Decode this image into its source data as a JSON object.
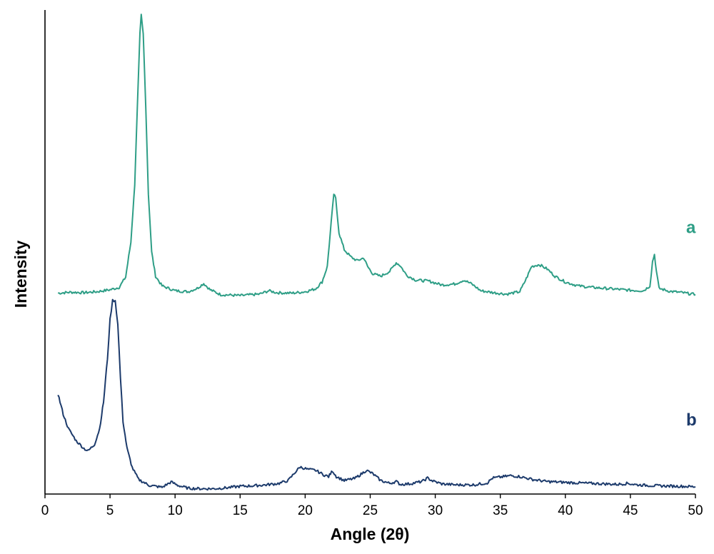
{
  "chart_data": {
    "type": "line",
    "xlabel": "Angle (2θ)",
    "ylabel": "Intensity",
    "xlim": [
      0,
      50
    ],
    "ylim": [
      0,
      100
    ],
    "x_ticks": [
      "0",
      "5",
      "10",
      "15",
      "20",
      "25",
      "30",
      "35",
      "40",
      "45",
      "50"
    ],
    "y_ticks_shown": false,
    "grid": false,
    "legend": "none; series labelled at right end of curves",
    "series": [
      {
        "name": "a",
        "color": "#2e9e86",
        "points": [
          [
            1.0,
            41.5
          ],
          [
            2.0,
            41.7
          ],
          [
            3.0,
            41.6
          ],
          [
            4.0,
            41.8
          ],
          [
            5.0,
            42.2
          ],
          [
            5.7,
            42.7
          ],
          [
            6.2,
            44.8
          ],
          [
            6.6,
            52.0
          ],
          [
            6.9,
            64.0
          ],
          [
            7.1,
            80.0
          ],
          [
            7.3,
            95.0
          ],
          [
            7.4,
            98.9
          ],
          [
            7.55,
            95.0
          ],
          [
            7.75,
            80.0
          ],
          [
            7.95,
            62.0
          ],
          [
            8.2,
            50.0
          ],
          [
            8.5,
            45.0
          ],
          [
            9.0,
            43.0
          ],
          [
            10.0,
            42.0
          ],
          [
            11.0,
            41.8
          ],
          [
            11.7,
            42.5
          ],
          [
            12.2,
            43.5
          ],
          [
            12.7,
            42.2
          ],
          [
            13.5,
            41.2
          ],
          [
            15.0,
            41.0
          ],
          [
            16.5,
            41.3
          ],
          [
            17.2,
            42.0
          ],
          [
            17.8,
            41.6
          ],
          [
            19.0,
            41.5
          ],
          [
            20.0,
            41.8
          ],
          [
            20.8,
            42.4
          ],
          [
            21.3,
            43.8
          ],
          [
            21.7,
            47.0
          ],
          [
            22.0,
            56.0
          ],
          [
            22.2,
            62.0
          ],
          [
            22.35,
            61.0
          ],
          [
            22.6,
            54.0
          ],
          [
            23.0,
            50.5
          ],
          [
            23.5,
            49.0
          ],
          [
            24.0,
            48.2
          ],
          [
            24.5,
            48.8
          ],
          [
            24.8,
            47.0
          ],
          [
            25.2,
            45.5
          ],
          [
            25.8,
            45.0
          ],
          [
            26.5,
            46.0
          ],
          [
            27.0,
            47.8
          ],
          [
            27.3,
            47.2
          ],
          [
            27.8,
            45.2
          ],
          [
            28.5,
            44.2
          ],
          [
            29.5,
            44.0
          ],
          [
            30.5,
            43.2
          ],
          [
            31.5,
            43.4
          ],
          [
            32.2,
            44.2
          ],
          [
            32.8,
            43.4
          ],
          [
            33.5,
            42.0
          ],
          [
            34.5,
            41.6
          ],
          [
            35.5,
            41.3
          ],
          [
            36.5,
            41.8
          ],
          [
            37.0,
            44.5
          ],
          [
            37.4,
            47.0
          ],
          [
            38.0,
            47.4
          ],
          [
            38.6,
            46.5
          ],
          [
            39.2,
            45.0
          ],
          [
            40.0,
            43.8
          ],
          [
            41.0,
            43.0
          ],
          [
            42.0,
            42.7
          ],
          [
            43.0,
            42.5
          ],
          [
            44.0,
            42.3
          ],
          [
            45.0,
            42.1
          ],
          [
            46.0,
            42.0
          ],
          [
            46.5,
            43.0
          ],
          [
            46.7,
            48.0
          ],
          [
            46.85,
            49.5
          ],
          [
            47.0,
            46.0
          ],
          [
            47.2,
            42.5
          ],
          [
            48.0,
            41.9
          ],
          [
            49.0,
            41.6
          ],
          [
            50.0,
            41.2
          ]
        ]
      },
      {
        "name": "b",
        "color": "#1c3a6b",
        "points": [
          [
            1.0,
            20.7
          ],
          [
            1.4,
            16.5
          ],
          [
            1.8,
            13.5
          ],
          [
            2.4,
            11.0
          ],
          [
            3.0,
            9.4
          ],
          [
            3.3,
            8.9
          ],
          [
            3.8,
            10.2
          ],
          [
            4.2,
            13.5
          ],
          [
            4.5,
            19.0
          ],
          [
            4.8,
            28.0
          ],
          [
            5.0,
            36.0
          ],
          [
            5.2,
            40.0
          ],
          [
            5.4,
            40.0
          ],
          [
            5.6,
            35.0
          ],
          [
            5.8,
            24.0
          ],
          [
            6.0,
            15.0
          ],
          [
            6.3,
            9.5
          ],
          [
            6.7,
            5.5
          ],
          [
            7.2,
            3.0
          ],
          [
            8.0,
            1.8
          ],
          [
            9.0,
            1.4
          ],
          [
            9.7,
            2.5
          ],
          [
            10.2,
            1.8
          ],
          [
            11.0,
            1.2
          ],
          [
            12.0,
            1.1
          ],
          [
            13.0,
            1.1
          ],
          [
            14.0,
            1.3
          ],
          [
            15.0,
            1.6
          ],
          [
            16.0,
            1.7
          ],
          [
            17.0,
            1.9
          ],
          [
            18.0,
            2.2
          ],
          [
            18.7,
            2.8
          ],
          [
            19.2,
            4.4
          ],
          [
            19.6,
            5.6
          ],
          [
            20.2,
            5.1
          ],
          [
            20.8,
            4.9
          ],
          [
            21.4,
            4.0
          ],
          [
            21.8,
            3.6
          ],
          [
            22.1,
            4.8
          ],
          [
            22.4,
            3.6
          ],
          [
            23.0,
            2.8
          ],
          [
            23.8,
            3.2
          ],
          [
            24.3,
            4.1
          ],
          [
            24.7,
            4.9
          ],
          [
            25.2,
            4.2
          ],
          [
            25.8,
            2.8
          ],
          [
            26.5,
            2.2
          ],
          [
            27.0,
            2.6
          ],
          [
            27.3,
            2.0
          ],
          [
            28.0,
            2.1
          ],
          [
            29.0,
            2.6
          ],
          [
            29.4,
            3.3
          ],
          [
            29.8,
            2.7
          ],
          [
            30.5,
            2.1
          ],
          [
            31.5,
            1.9
          ],
          [
            33.0,
            1.9
          ],
          [
            34.0,
            2.3
          ],
          [
            34.4,
            3.3
          ],
          [
            35.0,
            3.5
          ],
          [
            35.8,
            3.8
          ],
          [
            36.5,
            3.6
          ],
          [
            37.5,
            3.0
          ],
          [
            38.5,
            2.6
          ],
          [
            40.0,
            2.4
          ],
          [
            42.0,
            2.2
          ],
          [
            44.0,
            2.0
          ],
          [
            44.8,
            2.2
          ],
          [
            45.5,
            1.9
          ],
          [
            47.0,
            1.7
          ],
          [
            49.0,
            1.6
          ],
          [
            50.0,
            1.5
          ]
        ]
      }
    ]
  }
}
